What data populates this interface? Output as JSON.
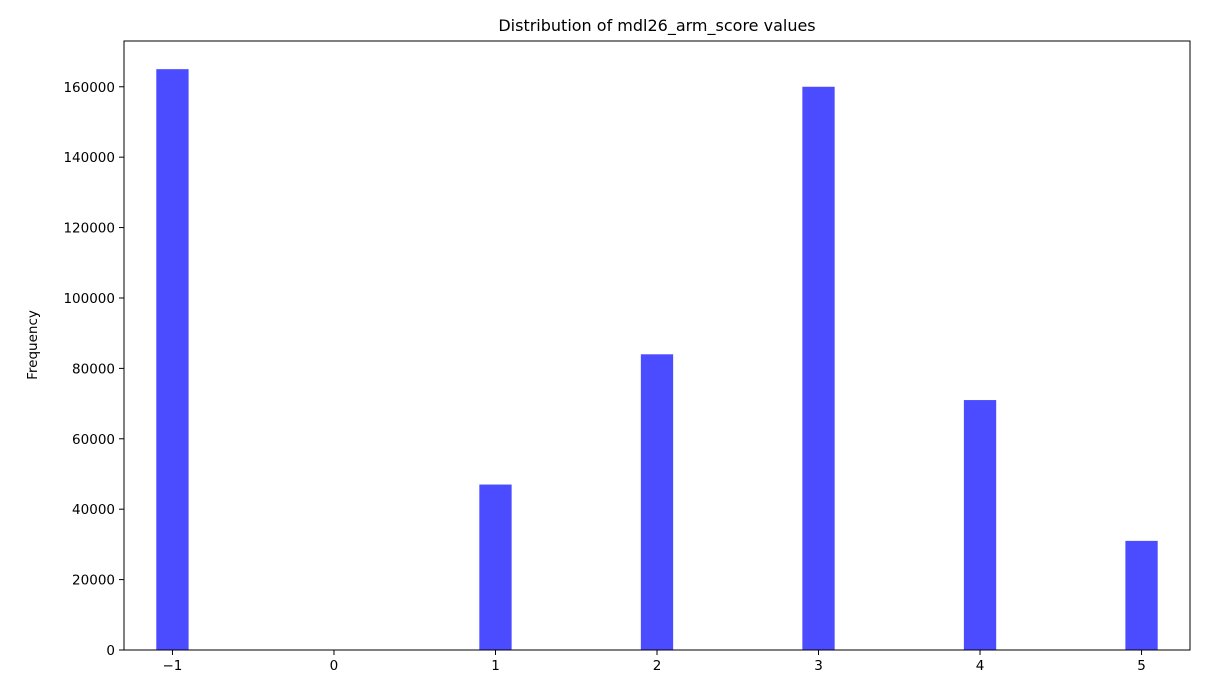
{
  "chart_data": {
    "type": "bar",
    "title": "Distribution of mdl26_arm_score values",
    "xlabel": "",
    "ylabel": "Frequency",
    "x": [
      -1,
      1,
      2,
      3,
      4,
      5
    ],
    "values": [
      165000,
      47000,
      84000,
      160000,
      71000,
      31000
    ],
    "bin_width": 0.2,
    "xlim": [
      -1.3,
      5.3
    ],
    "ylim": [
      0,
      173000
    ],
    "xticks": [
      -1,
      0,
      1,
      2,
      3,
      4,
      5
    ],
    "xtick_labels": [
      "−1",
      "0",
      "1",
      "2",
      "3",
      "4",
      "5"
    ],
    "yticks": [
      0,
      20000,
      40000,
      60000,
      80000,
      100000,
      120000,
      140000,
      160000
    ],
    "ytick_labels": [
      "0",
      "20000",
      "40000",
      "60000",
      "80000",
      "100000",
      "120000",
      "140000",
      "160000"
    ],
    "grid": false,
    "bar_color": "#4b4bff"
  }
}
